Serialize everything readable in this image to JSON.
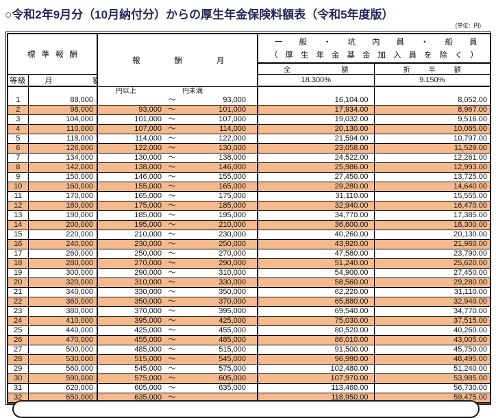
{
  "title": "○令和2年9月分（10月納付分）からの厚生年金保険料額表（令和5年度版）",
  "unit_label": "(単位：円)",
  "colors": {
    "band_orange": "#F4B98C",
    "title_navy": "#26265A"
  },
  "table": {
    "headers": {
      "standard_remuneration": "標準報酬",
      "grade": "等級",
      "monthly_amount": "月　額",
      "remuneration_monthly": "報酬月額",
      "group_line1": "一般・坑内員・船員",
      "group_line2": "（厚生年金基金加入員を除く）",
      "full_amount": "全　額",
      "half_amount": "折半額",
      "full_rate": "18.300%",
      "half_rate": "9.150%",
      "yen_or_more": "円以上",
      "yen_less_than": "円未満",
      "tilde": "～"
    },
    "rows": [
      {
        "grade": "1",
        "monthly": "88,000",
        "lower": "",
        "upper": "93,000",
        "full": "16,104.00",
        "half": "8,052.00"
      },
      {
        "grade": "2",
        "monthly": "98,000",
        "lower": "93,000",
        "upper": "101,000",
        "full": "17,934.00",
        "half": "8,967.00"
      },
      {
        "grade": "3",
        "monthly": "104,000",
        "lower": "101,000",
        "upper": "107,000",
        "full": "19,032.00",
        "half": "9,516.00"
      },
      {
        "grade": "4",
        "monthly": "110,000",
        "lower": "107,000",
        "upper": "114,000",
        "full": "20,130.00",
        "half": "10,065.00"
      },
      {
        "grade": "5",
        "monthly": "118,000",
        "lower": "114,000",
        "upper": "122,000",
        "full": "21,594.00",
        "half": "10,797.00"
      },
      {
        "grade": "6",
        "monthly": "126,000",
        "lower": "122,000",
        "upper": "130,000",
        "full": "23,058.00",
        "half": "11,529.00"
      },
      {
        "grade": "7",
        "monthly": "134,000",
        "lower": "130,000",
        "upper": "138,000",
        "full": "24,522.00",
        "half": "12,261.00"
      },
      {
        "grade": "8",
        "monthly": "142,000",
        "lower": "138,000",
        "upper": "146,000",
        "full": "25,986.00",
        "half": "12,993.00"
      },
      {
        "grade": "9",
        "monthly": "150,000",
        "lower": "146,000",
        "upper": "155,000",
        "full": "27,450.00",
        "half": "13,725.00"
      },
      {
        "grade": "10",
        "monthly": "160,000",
        "lower": "155,000",
        "upper": "165,000",
        "full": "29,280.00",
        "half": "14,640.00"
      },
      {
        "grade": "11",
        "monthly": "170,000",
        "lower": "165,000",
        "upper": "175,000",
        "full": "31,110.00",
        "half": "15,555.00"
      },
      {
        "grade": "12",
        "monthly": "180,000",
        "lower": "175,000",
        "upper": "185,000",
        "full": "32,940.00",
        "half": "16,470.00"
      },
      {
        "grade": "13",
        "monthly": "190,000",
        "lower": "185,000",
        "upper": "195,000",
        "full": "34,770.00",
        "half": "17,385.00"
      },
      {
        "grade": "14",
        "monthly": "200,000",
        "lower": "195,000",
        "upper": "210,000",
        "full": "36,600.00",
        "half": "18,300.00"
      },
      {
        "grade": "15",
        "monthly": "220,000",
        "lower": "210,000",
        "upper": "230,000",
        "full": "40,260.00",
        "half": "20,130.00"
      },
      {
        "grade": "16",
        "monthly": "240,000",
        "lower": "230,000",
        "upper": "250,000",
        "full": "43,920.00",
        "half": "21,960.00"
      },
      {
        "grade": "17",
        "monthly": "260,000",
        "lower": "250,000",
        "upper": "270,000",
        "full": "47,580.00",
        "half": "23,790.00"
      },
      {
        "grade": "18",
        "monthly": "280,000",
        "lower": "270,000",
        "upper": "290,000",
        "full": "51,240.00",
        "half": "25,620.00"
      },
      {
        "grade": "19",
        "monthly": "300,000",
        "lower": "290,000",
        "upper": "310,000",
        "full": "54,900.00",
        "half": "27,450.00"
      },
      {
        "grade": "20",
        "monthly": "320,000",
        "lower": "310,000",
        "upper": "330,000",
        "full": "58,560.00",
        "half": "29,280.00"
      },
      {
        "grade": "21",
        "monthly": "340,000",
        "lower": "330,000",
        "upper": "350,000",
        "full": "62,220.00",
        "half": "31,110.00"
      },
      {
        "grade": "22",
        "monthly": "360,000",
        "lower": "350,000",
        "upper": "370,000",
        "full": "65,880.00",
        "half": "32,940.00"
      },
      {
        "grade": "23",
        "monthly": "380,000",
        "lower": "370,000",
        "upper": "395,000",
        "full": "69,540.00",
        "half": "34,770.00"
      },
      {
        "grade": "24",
        "monthly": "410,000",
        "lower": "395,000",
        "upper": "425,000",
        "full": "75,030.00",
        "half": "37,515.00"
      },
      {
        "grade": "25",
        "monthly": "440,000",
        "lower": "425,000",
        "upper": "455,000",
        "full": "80,520.00",
        "half": "40,260.00"
      },
      {
        "grade": "26",
        "monthly": "470,000",
        "lower": "455,000",
        "upper": "485,000",
        "full": "86,010.00",
        "half": "43,005.00"
      },
      {
        "grade": "27",
        "monthly": "500,000",
        "lower": "485,000",
        "upper": "515,000",
        "full": "91,500.00",
        "half": "45,750.00"
      },
      {
        "grade": "28",
        "monthly": "530,000",
        "lower": "515,000",
        "upper": "545,000",
        "full": "96,990.00",
        "half": "48,495.00"
      },
      {
        "grade": "29",
        "monthly": "560,000",
        "lower": "545,000",
        "upper": "575,000",
        "full": "102,480.00",
        "half": "51,240.00"
      },
      {
        "grade": "30",
        "monthly": "590,000",
        "lower": "575,000",
        "upper": "605,000",
        "full": "107,970.00",
        "half": "53,985.00"
      },
      {
        "grade": "31",
        "monthly": "620,000",
        "lower": "605,000",
        "upper": "635,000",
        "full": "113,460.00",
        "half": "56,730.00"
      },
      {
        "grade": "32",
        "monthly": "650,000",
        "lower": "635,000",
        "upper": "",
        "full": "118,950.00",
        "half": "59,475.00"
      }
    ]
  }
}
